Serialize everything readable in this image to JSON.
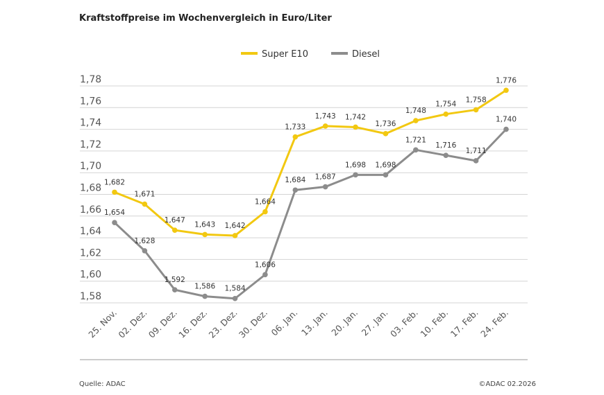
{
  "chart_data": {
    "type": "line",
    "title": "Kraftstoffpreise im Wochenvergleich in Euro/Liter",
    "xlabel": "",
    "ylabel": "",
    "categories": [
      "25. Nov.",
      "02. Dez.",
      "09. Dez.",
      "16. Dez.",
      "23. Dez.",
      "30. Dez.",
      "06. Jan.",
      "13. Jan.",
      "20. Jan.",
      "27. Jan.",
      "03. Feb.",
      "10. Feb.",
      "17. Feb.",
      "24. Feb."
    ],
    "ylim": [
      1.58,
      1.78
    ],
    "yticks": [
      "1,58",
      "1,60",
      "1,62",
      "1,64",
      "1,66",
      "1,68",
      "1,70",
      "1,72",
      "1,74",
      "1,76",
      "1,78"
    ],
    "grid": true,
    "legend_position": "top-center",
    "series": [
      {
        "name": "Super E10",
        "color": "#f2c811",
        "values": [
          1.682,
          1.671,
          1.647,
          1.643,
          1.642,
          1.664,
          1.733,
          1.743,
          1.742,
          1.736,
          1.748,
          1.754,
          1.758,
          1.776
        ],
        "labels": [
          "1,682",
          "1,671",
          "1,647",
          "1,643",
          "1,642",
          "1,664",
          "1,733",
          "1,743",
          "1,742",
          "1,736",
          "1,748",
          "1,754",
          "1,758",
          "1,776"
        ]
      },
      {
        "name": "Diesel",
        "color": "#8c8c8c",
        "values": [
          1.654,
          1.628,
          1.592,
          1.586,
          1.584,
          1.606,
          1.684,
          1.687,
          1.698,
          1.698,
          1.721,
          1.716,
          1.711,
          1.74
        ],
        "labels": [
          "1,654",
          "1,628",
          "1,592",
          "1,586",
          "1,584",
          "1,606",
          "1,684",
          "1,687",
          "1,698",
          "1,698",
          "1,721",
          "1,716",
          "1,711",
          "1,740"
        ]
      }
    ]
  },
  "footer": {
    "source": "Quelle: ADAC",
    "copyright": "©ADAC 02.2026"
  }
}
